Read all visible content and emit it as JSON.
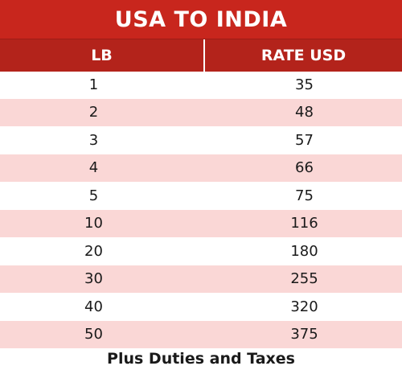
{
  "title": "USA TO INDIA",
  "columns": {
    "lb": "LB",
    "rate": "RATE USD"
  },
  "rows": [
    {
      "lb": "1",
      "rate": "35"
    },
    {
      "lb": "2",
      "rate": "48"
    },
    {
      "lb": "3",
      "rate": "57"
    },
    {
      "lb": "4",
      "rate": "66"
    },
    {
      "lb": "5",
      "rate": "75"
    },
    {
      "lb": "10",
      "rate": "116"
    },
    {
      "lb": "20",
      "rate": "180"
    },
    {
      "lb": "30",
      "rate": "255"
    },
    {
      "lb": "40",
      "rate": "320"
    },
    {
      "lb": "50",
      "rate": "375"
    }
  ],
  "footer": "Plus Duties and Taxes",
  "colors": {
    "title_bg": "#c8261d",
    "header_bg": "#b3231b",
    "alt_row_bg": "#fad7d6"
  }
}
